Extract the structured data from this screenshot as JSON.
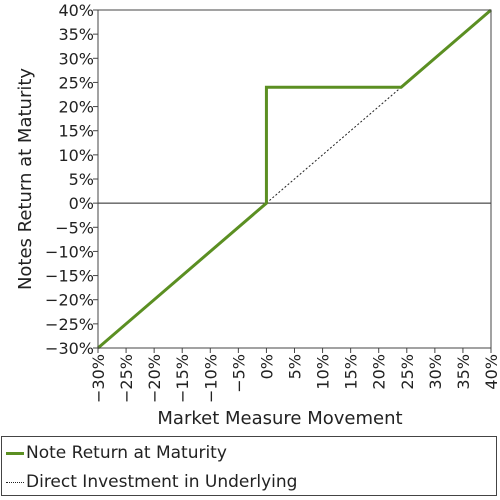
{
  "chart_data": {
    "type": "line",
    "title": "",
    "xlabel": "Market Measure Movement",
    "ylabel": "Notes Return at Maturity",
    "xlim": [
      -30,
      40
    ],
    "ylim": [
      -30,
      40
    ],
    "x_ticks": [
      "−30%",
      "−25%",
      "−20%",
      "−15%",
      "−10%",
      "−5%",
      "0%",
      "5%",
      "10%",
      "15%",
      "20%",
      "25%",
      "30%",
      "35%",
      "40%"
    ],
    "y_ticks": [
      "−30%",
      "−25%",
      "−20%",
      "−15%",
      "−10%",
      "−5%",
      "0%",
      "5%",
      "10%",
      "15%",
      "20%",
      "25%",
      "30%",
      "35%",
      "40%"
    ],
    "tick_values": [
      -30,
      -25,
      -20,
      -15,
      -10,
      -5,
      0,
      5,
      10,
      15,
      20,
      25,
      30,
      35,
      40
    ],
    "series": [
      {
        "name": "Note Return at Maturity",
        "style": "solid",
        "color": "#5b8f22",
        "points": [
          [
            -30,
            -30
          ],
          [
            0,
            0
          ],
          [
            0,
            24
          ],
          [
            24,
            24
          ],
          [
            40,
            40
          ]
        ]
      },
      {
        "name": "Direct Investment in Underlying",
        "style": "dotted",
        "color": "#222222",
        "points": [
          [
            0,
            0
          ],
          [
            24,
            24
          ]
        ]
      }
    ],
    "legend_position": "bottom"
  }
}
